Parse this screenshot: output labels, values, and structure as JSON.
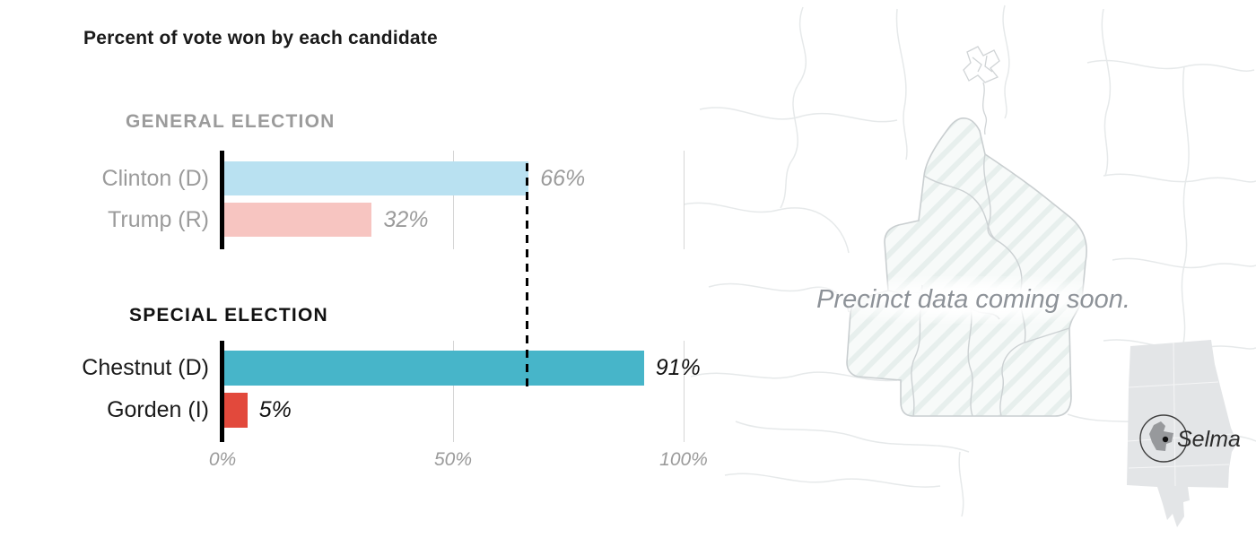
{
  "title": "Percent of vote won by each candidate",
  "chart_data": {
    "type": "bar",
    "orientation": "horizontal",
    "title": "Percent of vote won by each candidate",
    "xlim": [
      0,
      100
    ],
    "grid": "vertical",
    "x_ticks": [
      {
        "label": "0%",
        "value": 0
      },
      {
        "label": "50%",
        "value": 50
      },
      {
        "label": "100%",
        "value": 100
      }
    ],
    "reference_line": {
      "value": 66,
      "style": "dashed",
      "color": "#000000"
    },
    "groups": [
      {
        "label": "GENERAL ELECTION",
        "label_color": "#9b9b9b",
        "value_label_color": "#9b9b9b",
        "bars": [
          {
            "category": "Clinton (D)",
            "value": 66,
            "value_label": "66%",
            "color": "#b9e1f1"
          },
          {
            "category": "Trump (R)",
            "value": 32,
            "value_label": "32%",
            "color": "#f7c5c1"
          }
        ]
      },
      {
        "label": "SPECIAL ELECTION",
        "label_color": "#1a1a1a",
        "value_label_color": "#111111",
        "bars": [
          {
            "category": "Chestnut (D)",
            "value": 91,
            "value_label": "91%",
            "color": "#47b5c9"
          },
          {
            "category": "Gorden (I)",
            "value": 5,
            "value_label": "5%",
            "color": "#e2493c"
          }
        ]
      }
    ]
  },
  "colors": {
    "axis": "#000000",
    "gridline": "#d6d6d6",
    "muted_text": "#9b9b9b",
    "dark_text": "#1a1a1a",
    "map_outline": "#e6e9ea",
    "map_highlight_outline": "#c9ced0",
    "inset_state_fill": "#e3e5e7",
    "inset_county_fill": "#97999c"
  },
  "map": {
    "placeholder_text": "Precinct data coming soon.",
    "inset_label": "Selma"
  }
}
